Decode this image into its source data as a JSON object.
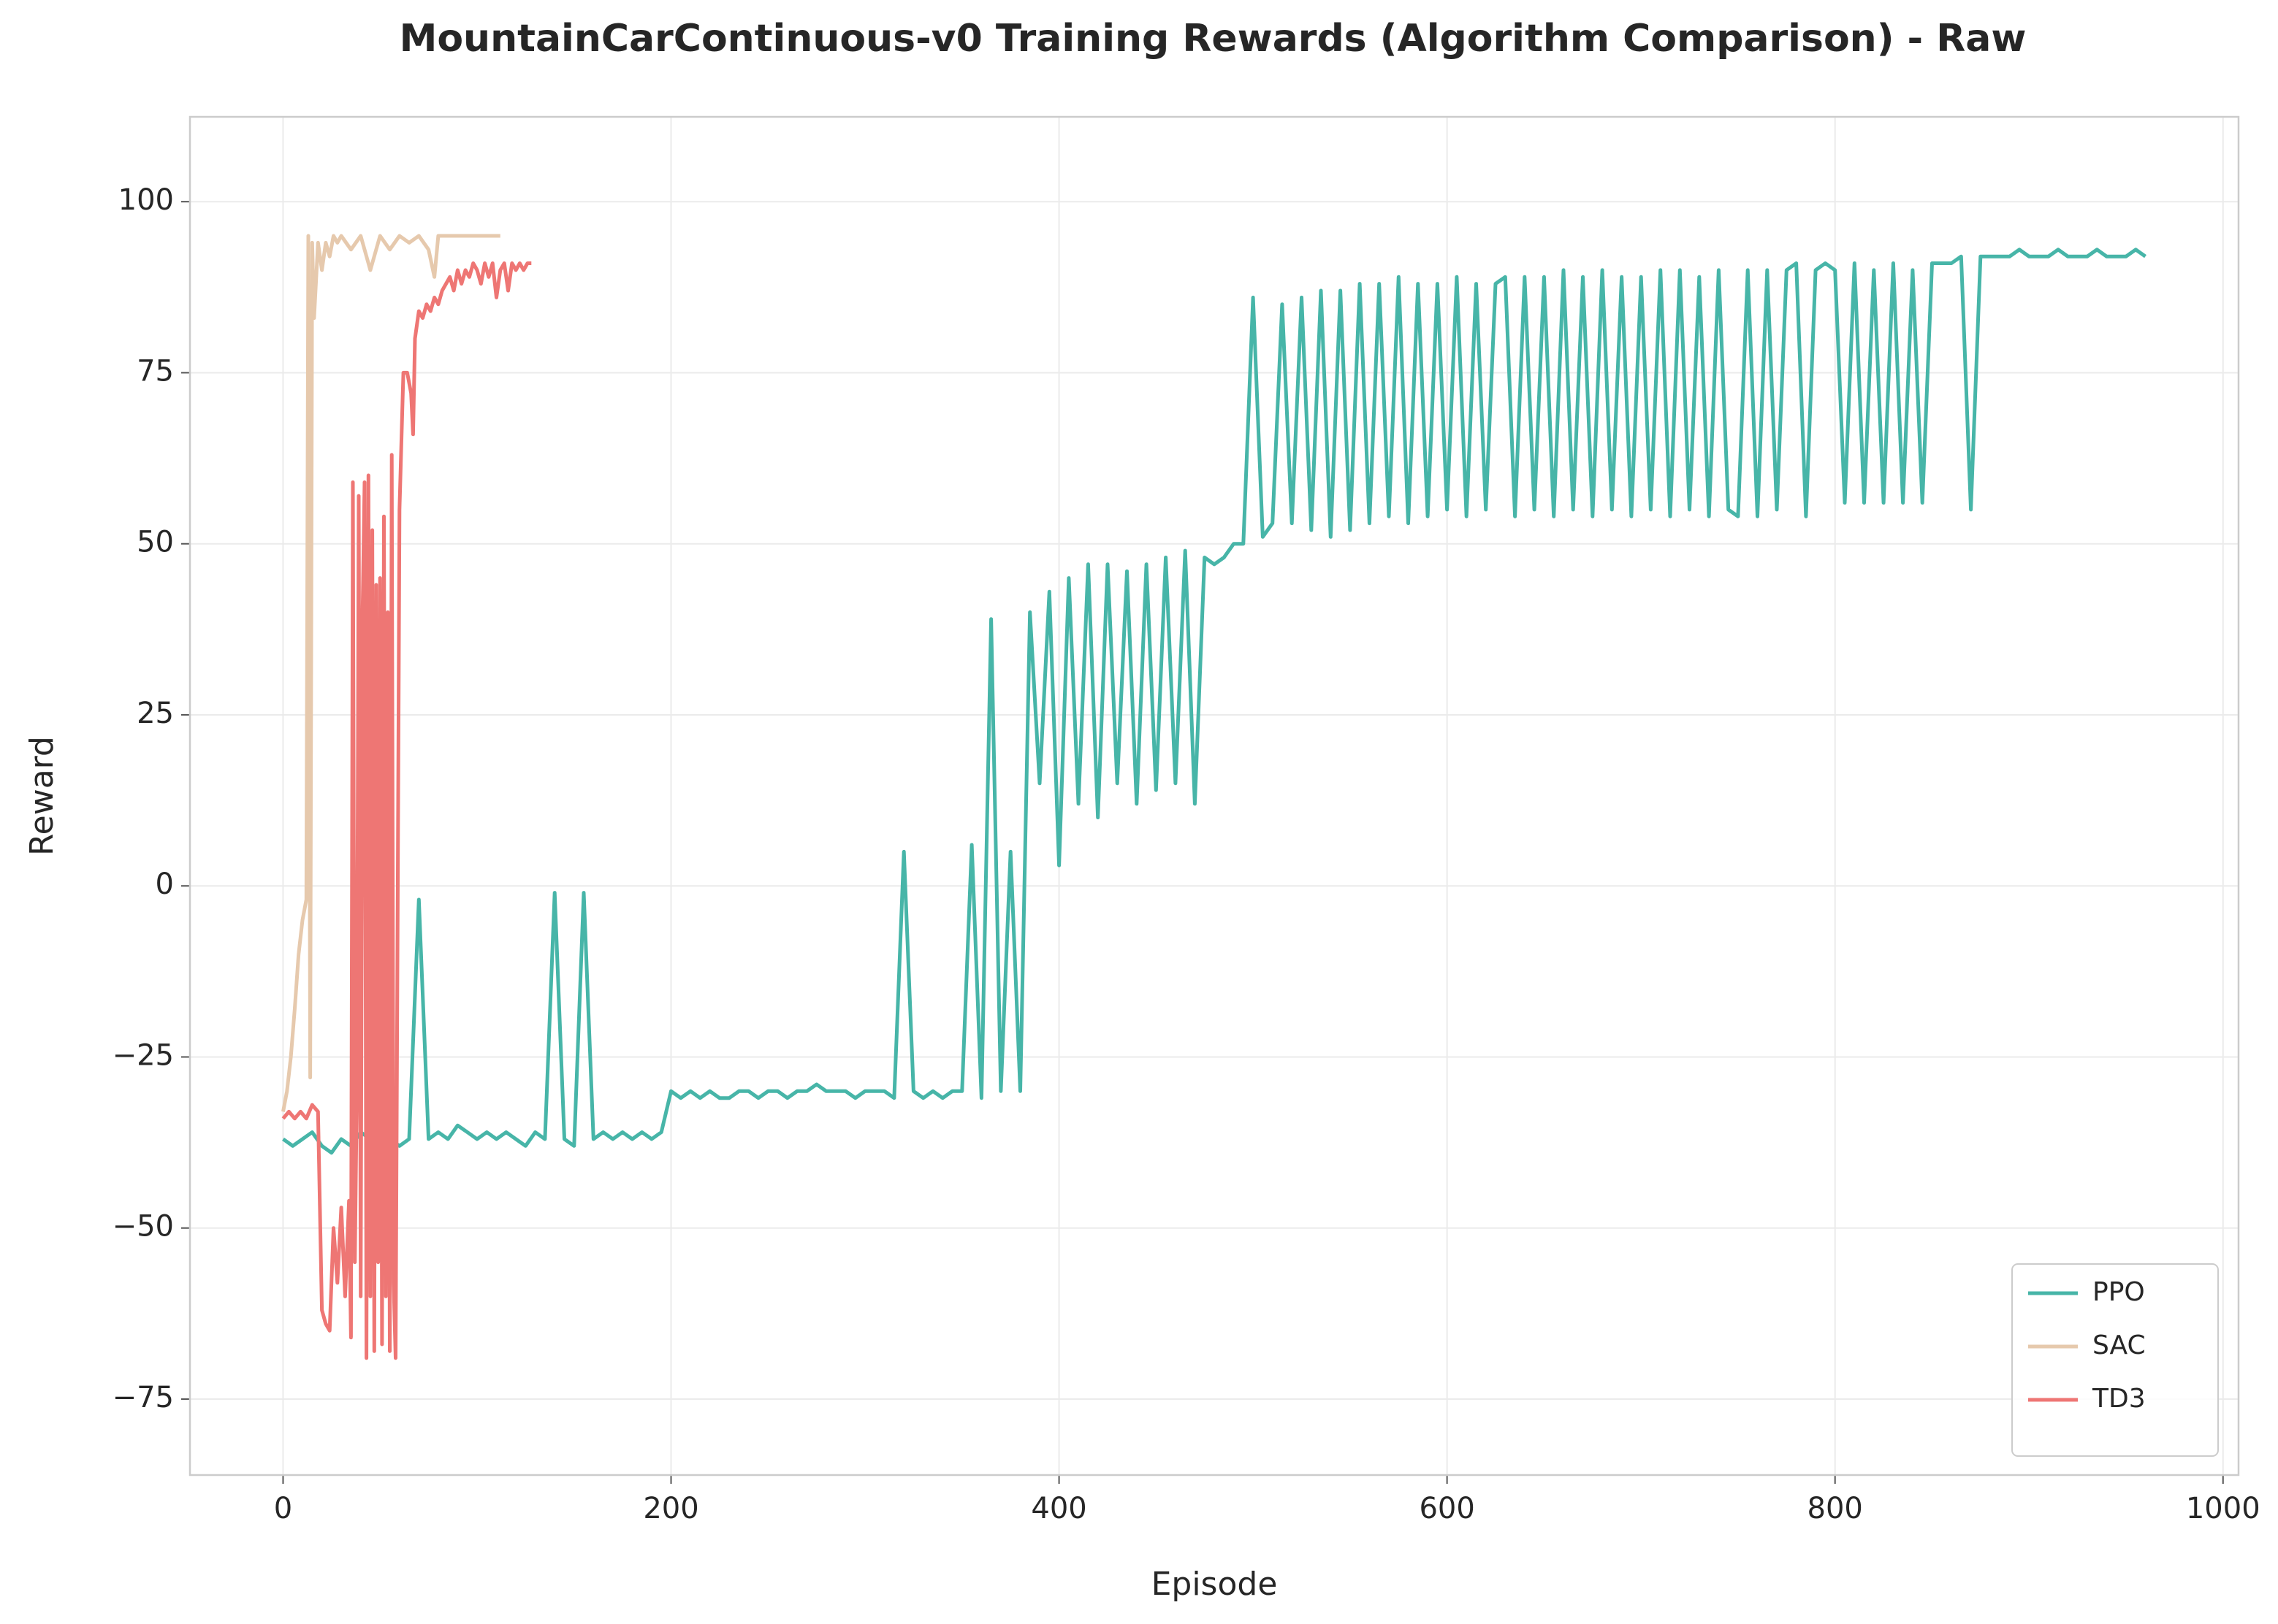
{
  "chart_data": {
    "type": "line",
    "title": "MountainCarContinuous-v0 Training Rewards (Algorithm Comparison) - Raw",
    "x_label": "Episode",
    "y_label": "Reward",
    "xlim": [
      -48,
      1008
    ],
    "ylim": [
      -86.1,
      112.4
    ],
    "xticks": [
      0,
      200,
      400,
      600,
      800,
      1000
    ],
    "yticks": [
      {
        "value": -75,
        "label": "−75"
      },
      {
        "value": -50,
        "label": "−50"
      },
      {
        "value": -25,
        "label": "−25"
      },
      0,
      25,
      50,
      75,
      100
    ],
    "grid": true,
    "legend": "lower right",
    "series": [
      {
        "name": "PPO",
        "color": "#47b5a8",
        "x": [
          0,
          5,
          10,
          15,
          20,
          25,
          30,
          35,
          40,
          45,
          50,
          55,
          60,
          65,
          70,
          75,
          80,
          85,
          90,
          95,
          100,
          105,
          110,
          115,
          120,
          125,
          130,
          135,
          140,
          145,
          150,
          155,
          160,
          165,
          170,
          175,
          180,
          185,
          190,
          195,
          200,
          205,
          210,
          215,
          220,
          225,
          230,
          235,
          240,
          245,
          250,
          255,
          260,
          265,
          270,
          275,
          280,
          285,
          290,
          295,
          300,
          305,
          310,
          315,
          320,
          325,
          330,
          335,
          340,
          345,
          350,
          355,
          360,
          365,
          370,
          375,
          380,
          385,
          390,
          395,
          400,
          405,
          410,
          415,
          420,
          425,
          430,
          435,
          440,
          445,
          450,
          455,
          460,
          465,
          470,
          475,
          480,
          485,
          490,
          495,
          500,
          505,
          510,
          515,
          520,
          525,
          530,
          535,
          540,
          545,
          550,
          555,
          560,
          565,
          570,
          575,
          580,
          585,
          590,
          595,
          600,
          605,
          610,
          615,
          620,
          625,
          630,
          635,
          640,
          645,
          650,
          655,
          660,
          665,
          670,
          675,
          680,
          685,
          690,
          695,
          700,
          705,
          710,
          715,
          720,
          725,
          730,
          735,
          740,
          745,
          750,
          755,
          760,
          765,
          770,
          775,
          780,
          785,
          790,
          795,
          800,
          805,
          810,
          815,
          820,
          825,
          830,
          835,
          840,
          845,
          850,
          855,
          860,
          865,
          870,
          875,
          880,
          885,
          890,
          895,
          900,
          905,
          910,
          915,
          920,
          925,
          930,
          935,
          940,
          945,
          950,
          955,
          960
        ],
        "values": [
          -37,
          -38,
          -37,
          -36,
          -38,
          -39,
          -37,
          -38,
          -36,
          -37,
          -36,
          -37,
          -38,
          -37,
          -2,
          -37,
          -36,
          -37,
          -35,
          -36,
          -37,
          -36,
          -37,
          -36,
          -37,
          -38,
          -36,
          -37,
          -1,
          -37,
          -38,
          -1,
          -37,
          -36,
          -37,
          -36,
          -37,
          -36,
          -37,
          -36,
          -30,
          -31,
          -30,
          -31,
          -30,
          -31,
          -31,
          -30,
          -30,
          -31,
          -30,
          -30,
          -31,
          -30,
          -30,
          -29,
          -30,
          -30,
          -30,
          -31,
          -30,
          -30,
          -30,
          -31,
          5,
          -30,
          -31,
          -30,
          -31,
          -30,
          -30,
          6,
          -31,
          39,
          -30,
          5,
          -30,
          40,
          15,
          43,
          3,
          45,
          12,
          47,
          10,
          47,
          15,
          46,
          12,
          47,
          14,
          48,
          15,
          49,
          12,
          48,
          47,
          48,
          50,
          50,
          86,
          51,
          53,
          85,
          53,
          86,
          52,
          87,
          51,
          87,
          52,
          88,
          53,
          88,
          54,
          89,
          53,
          88,
          54,
          88,
          55,
          89,
          54,
          88,
          55,
          88,
          89,
          54,
          89,
          55,
          89,
          54,
          90,
          55,
          89,
          54,
          90,
          55,
          89,
          54,
          89,
          55,
          90,
          54,
          90,
          55,
          89,
          54,
          90,
          55,
          54,
          90,
          54,
          90,
          55,
          90,
          91,
          54,
          90,
          91,
          90,
          56,
          91,
          56,
          90,
          56,
          91,
          56,
          90,
          56,
          91,
          91,
          91,
          92,
          55,
          92,
          92,
          92,
          92,
          93,
          92,
          92,
          92,
          93,
          92,
          92,
          92,
          93,
          92,
          92,
          92,
          93,
          92
        ]
      },
      {
        "name": "SAC",
        "color": "#e6c9ad",
        "x": [
          0,
          2,
          4,
          6,
          8,
          10,
          12,
          13,
          14,
          15,
          16,
          18,
          20,
          22,
          24,
          26,
          28,
          30,
          35,
          40,
          45,
          50,
          55,
          60,
          65,
          70,
          75,
          78,
          80,
          85,
          90,
          95,
          100,
          105,
          110,
          112
        ],
        "values": [
          -33,
          -30,
          -25,
          -18,
          -10,
          -5,
          -2,
          95,
          -28,
          94,
          83,
          94,
          90,
          94,
          92,
          95,
          94,
          95,
          93,
          95,
          90,
          95,
          93,
          95,
          94,
          95,
          93,
          89,
          95,
          95,
          95,
          95,
          95,
          95,
          95,
          95
        ]
      },
      {
        "name": "TD3",
        "color": "#ee7674",
        "x": [
          0,
          3,
          6,
          9,
          12,
          15,
          18,
          20,
          22,
          24,
          26,
          28,
          30,
          32,
          34,
          35,
          36,
          37,
          38,
          39,
          40,
          41,
          42,
          43,
          44,
          45,
          46,
          47,
          48,
          49,
          50,
          51,
          52,
          53,
          54,
          55,
          56,
          57,
          58,
          60,
          62,
          64,
          66,
          67,
          68,
          70,
          72,
          74,
          76,
          78,
          80,
          82,
          84,
          86,
          88,
          90,
          92,
          94,
          96,
          98,
          100,
          102,
          104,
          106,
          108,
          110,
          112,
          114,
          116,
          118,
          120,
          122,
          124,
          126,
          128
        ],
        "values": [
          -34,
          -33,
          -34,
          -33,
          -34,
          -32,
          -33,
          -62,
          -64,
          -65,
          -50,
          -58,
          -47,
          -60,
          -46,
          -66,
          59,
          -55,
          -30,
          57,
          -60,
          40,
          59,
          -69,
          60,
          -60,
          52,
          -68,
          44,
          -55,
          45,
          -67,
          54,
          -60,
          40,
          -68,
          63,
          -58,
          -69,
          55,
          75,
          75,
          72,
          66,
          80,
          84,
          83,
          85,
          84,
          86,
          85,
          87,
          88,
          89,
          87,
          90,
          88,
          90,
          89,
          91,
          90,
          88,
          91,
          89,
          91,
          86,
          90,
          91,
          87,
          91,
          90,
          91,
          90,
          91,
          91
        ]
      }
    ]
  }
}
